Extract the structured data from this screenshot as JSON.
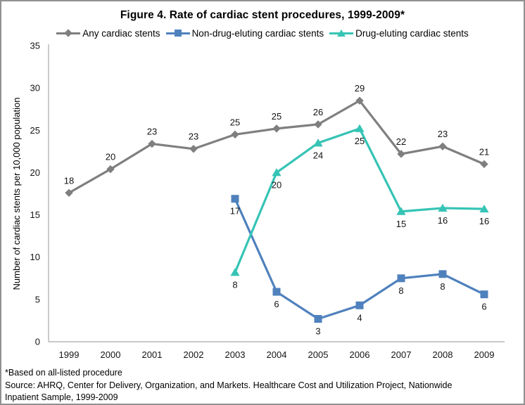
{
  "figure": {
    "footnotes": [
      "*Based on all-listed procedure",
      "Source: AHRQ, Center for Delivery, Organization, and Markets.  Healthcare Cost and Utilization Project, Nationwide",
      "Inpatient Sample,  1999-2009"
    ]
  },
  "chart_data": {
    "type": "line",
    "title": "Figure 4. Rate of cardiac stent procedures, 1999-2009*",
    "xlabel": "",
    "ylabel": "Number of cardiac stents per 10,000 population",
    "x": [
      1999,
      2000,
      2001,
      2002,
      2003,
      2004,
      2005,
      2006,
      2007,
      2008,
      2009
    ],
    "ylim": [
      0,
      35
    ],
    "yticks": [
      0,
      5,
      10,
      15,
      20,
      25,
      30,
      35
    ],
    "grid": false,
    "legend_position": "top",
    "axis_color": "#b5b5b5",
    "series": [
      {
        "name": "Any cardiac stents",
        "color": "#7f7f7f",
        "marker": "diamond",
        "label_position": "above",
        "values": [
          18,
          20,
          23,
          23,
          25,
          25,
          26,
          29,
          22,
          23,
          21
        ],
        "plotted_values": [
          17.6,
          20.4,
          23.4,
          22.8,
          24.5,
          25.2,
          25.7,
          28.5,
          22.2,
          23.1,
          21.0
        ]
      },
      {
        "name": "Non-drug-eluting cardiac stents",
        "color": "#4f81bd",
        "marker": "square",
        "label_position": "below",
        "values": [
          null,
          null,
          null,
          null,
          17,
          6,
          3,
          4,
          8,
          8,
          6
        ],
        "plotted_values": [
          null,
          null,
          null,
          null,
          16.9,
          5.9,
          2.7,
          4.3,
          7.5,
          8.0,
          5.6
        ]
      },
      {
        "name": "Drug-eluting cardiac stents",
        "color": "#35c4b5",
        "marker": "triangle",
        "label_position": "below",
        "values": [
          null,
          null,
          null,
          null,
          8,
          20,
          24,
          25,
          15,
          16,
          16
        ],
        "plotted_values": [
          null,
          null,
          null,
          null,
          8.2,
          20.0,
          23.5,
          25.2,
          15.4,
          15.8,
          15.7
        ]
      }
    ]
  }
}
